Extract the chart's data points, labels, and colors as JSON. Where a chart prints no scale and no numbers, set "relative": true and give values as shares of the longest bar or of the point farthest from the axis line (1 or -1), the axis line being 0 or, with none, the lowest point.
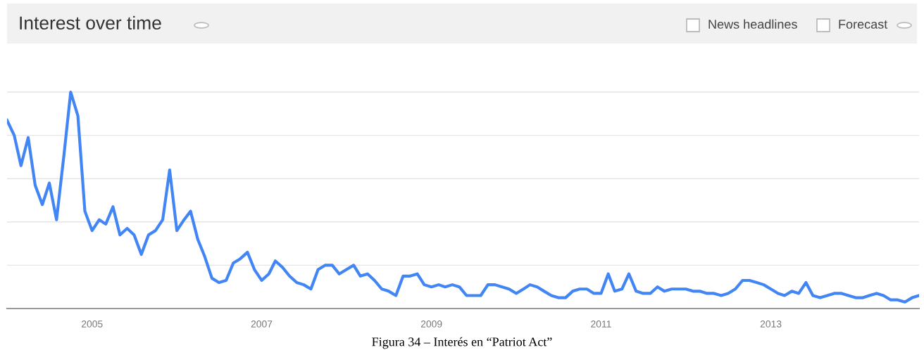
{
  "chart_data": {
    "type": "line",
    "title": "Interest over time",
    "relative": true,
    "grid": "y",
    "marker": "none",
    "line_style": "solid",
    "x": [
      "2004-01",
      "2004-02",
      "2004-03",
      "2004-04",
      "2004-05",
      "2004-06",
      "2004-07",
      "2004-08",
      "2004-09",
      "2004-10",
      "2004-11",
      "2004-12",
      "2005-01",
      "2005-02",
      "2005-03",
      "2005-04",
      "2005-05",
      "2005-06",
      "2005-07",
      "2005-08",
      "2005-09",
      "2005-10",
      "2005-11",
      "2005-12",
      "2006-01",
      "2006-02",
      "2006-03",
      "2006-04",
      "2006-05",
      "2006-06",
      "2006-07",
      "2006-08",
      "2006-09",
      "2006-10",
      "2006-11",
      "2006-12",
      "2007-01",
      "2007-02",
      "2007-03",
      "2007-04",
      "2007-05",
      "2007-06",
      "2007-07",
      "2007-08",
      "2007-09",
      "2007-10",
      "2007-11",
      "2007-12",
      "2008-01",
      "2008-02",
      "2008-03",
      "2008-04",
      "2008-05",
      "2008-06",
      "2008-07",
      "2008-08",
      "2008-09",
      "2008-10",
      "2008-11",
      "2008-12",
      "2009-01",
      "2009-02",
      "2009-03",
      "2009-04",
      "2009-05",
      "2009-06",
      "2009-07",
      "2009-08",
      "2009-09",
      "2009-10",
      "2009-11",
      "2009-12",
      "2010-01",
      "2010-02",
      "2010-03",
      "2010-04",
      "2010-05",
      "2010-06",
      "2010-07",
      "2010-08",
      "2010-09",
      "2010-10",
      "2010-11",
      "2010-12",
      "2011-01",
      "2011-02",
      "2011-03",
      "2011-04",
      "2011-05",
      "2011-06",
      "2011-07",
      "2011-08",
      "2011-09",
      "2011-10",
      "2011-11",
      "2011-12",
      "2012-01",
      "2012-02",
      "2012-03",
      "2012-04",
      "2012-05",
      "2012-06",
      "2012-07",
      "2012-08",
      "2012-09",
      "2012-10",
      "2012-11",
      "2012-12",
      "2013-01",
      "2013-02",
      "2013-03",
      "2013-04",
      "2013-05",
      "2013-06",
      "2013-07",
      "2013-08",
      "2013-09",
      "2013-10",
      "2013-11",
      "2013-12",
      "2014-01",
      "2014-02",
      "2014-03",
      "2014-04",
      "2014-05",
      "2014-06",
      "2014-07",
      "2014-08",
      "2014-09",
      "2014-10"
    ],
    "series": [
      {
        "color": "#4285f4",
        "values": [
          0.87,
          0.8,
          0.66,
          0.79,
          0.57,
          0.48,
          0.58,
          0.41,
          0.7,
          1.0,
          0.89,
          0.45,
          0.36,
          0.41,
          0.39,
          0.47,
          0.34,
          0.37,
          0.34,
          0.25,
          0.34,
          0.36,
          0.41,
          0.64,
          0.36,
          0.41,
          0.45,
          0.32,
          0.24,
          0.14,
          0.12,
          0.13,
          0.21,
          0.23,
          0.26,
          0.18,
          0.13,
          0.16,
          0.22,
          0.19,
          0.15,
          0.12,
          0.11,
          0.09,
          0.18,
          0.2,
          0.2,
          0.16,
          0.18,
          0.2,
          0.15,
          0.16,
          0.13,
          0.09,
          0.08,
          0.06,
          0.15,
          0.15,
          0.16,
          0.11,
          0.1,
          0.11,
          0.1,
          0.11,
          0.1,
          0.06,
          0.06,
          0.06,
          0.11,
          0.11,
          0.1,
          0.09,
          0.07,
          0.09,
          0.11,
          0.1,
          0.08,
          0.06,
          0.05,
          0.05,
          0.08,
          0.09,
          0.09,
          0.07,
          0.07,
          0.16,
          0.08,
          0.09,
          0.16,
          0.08,
          0.07,
          0.07,
          0.1,
          0.08,
          0.09,
          0.09,
          0.09,
          0.08,
          0.08,
          0.07,
          0.07,
          0.06,
          0.07,
          0.09,
          0.13,
          0.13,
          0.12,
          0.11,
          0.09,
          0.07,
          0.06,
          0.08,
          0.07,
          0.12,
          0.06,
          0.05,
          0.06,
          0.07,
          0.07,
          0.06,
          0.05,
          0.05,
          0.06,
          0.07,
          0.06,
          0.04,
          0.04,
          0.03,
          0.05,
          0.06
        ]
      }
    ],
    "xlim": [
      "2004-01",
      "2014-10"
    ],
    "xticks": [
      {
        "value": "2005-01",
        "label": "2005"
      },
      {
        "value": "2007-01",
        "label": "2007"
      },
      {
        "value": "2009-01",
        "label": "2009"
      },
      {
        "value": "2011-01",
        "label": "2011"
      },
      {
        "value": "2013-01",
        "label": "2013"
      }
    ],
    "annotations": [
      "News headlines",
      "Forecast",
      "Figura 34 – Interés en “Patriot Act”"
    ]
  }
}
